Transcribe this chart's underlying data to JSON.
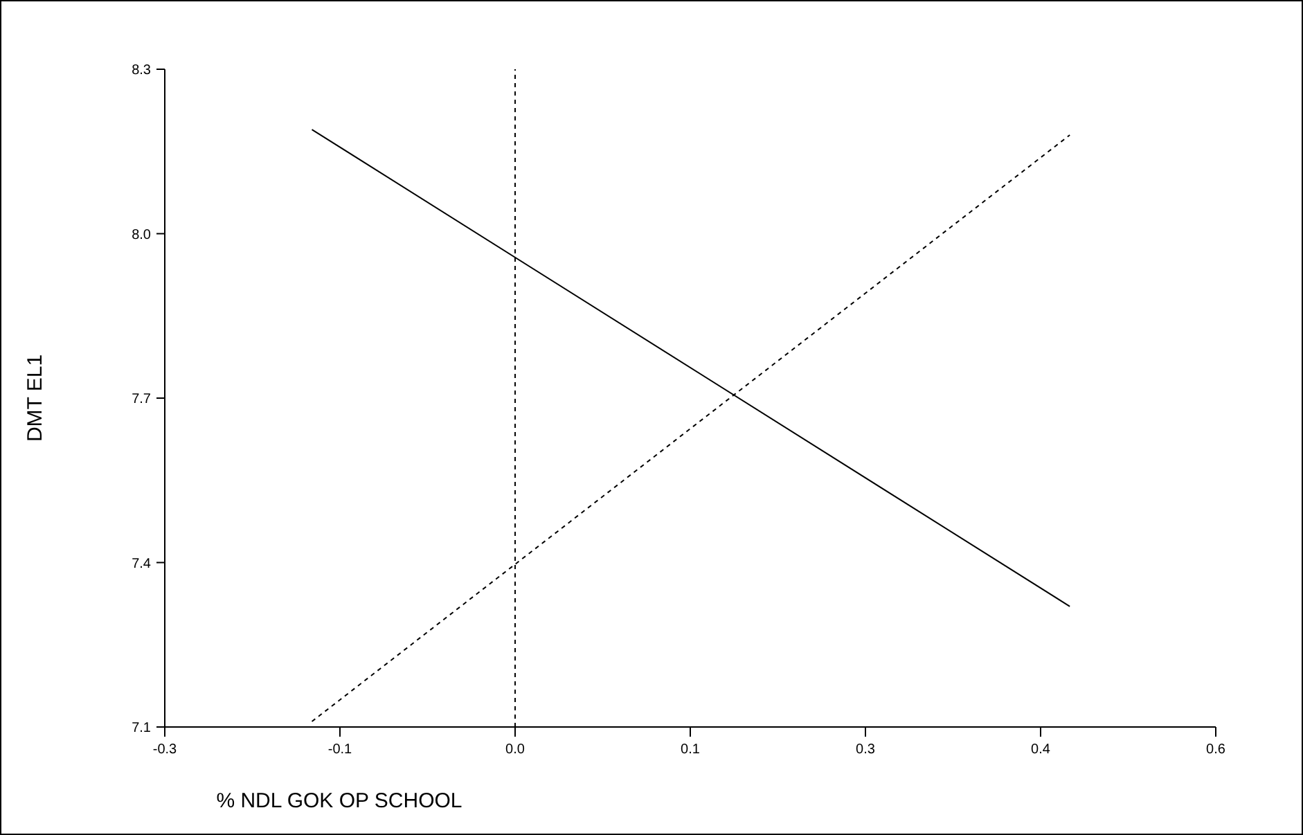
{
  "chart_data": {
    "type": "line",
    "xlabel": "% NDL GOK OP SCHOOL",
    "ylabel": "DMT EL1",
    "xlim": [
      -0.3,
      0.6
    ],
    "xticks": [
      -0.3,
      {
        "value": -0.15,
        "label": "-0.1"
      },
      {
        "value": 0,
        "label": "0.0"
      },
      {
        "value": 0.15,
        "label": "0.1"
      },
      0.3,
      {
        "value": 0.45,
        "label": "0.4"
      },
      0.6
    ],
    "ylim": [
      7.1,
      8.3
    ],
    "yticks": [
      7.1,
      7.4,
      7.7,
      {
        "value": 8,
        "label": "8.0"
      },
      8.3
    ],
    "x": [
      -0.174,
      0.475
    ],
    "series": [
      {
        "color": "#000000",
        "line_style": "solid",
        "values": [
          8.19,
          7.32
        ]
      },
      {
        "color": "#000000",
        "line_style": "dashed",
        "values": [
          7.11,
          8.18
        ]
      }
    ],
    "ref_lines": [
      {
        "axis": "x",
        "value": 0,
        "line_style": "dashed",
        "color": "#000000"
      }
    ],
    "marker": "none"
  }
}
